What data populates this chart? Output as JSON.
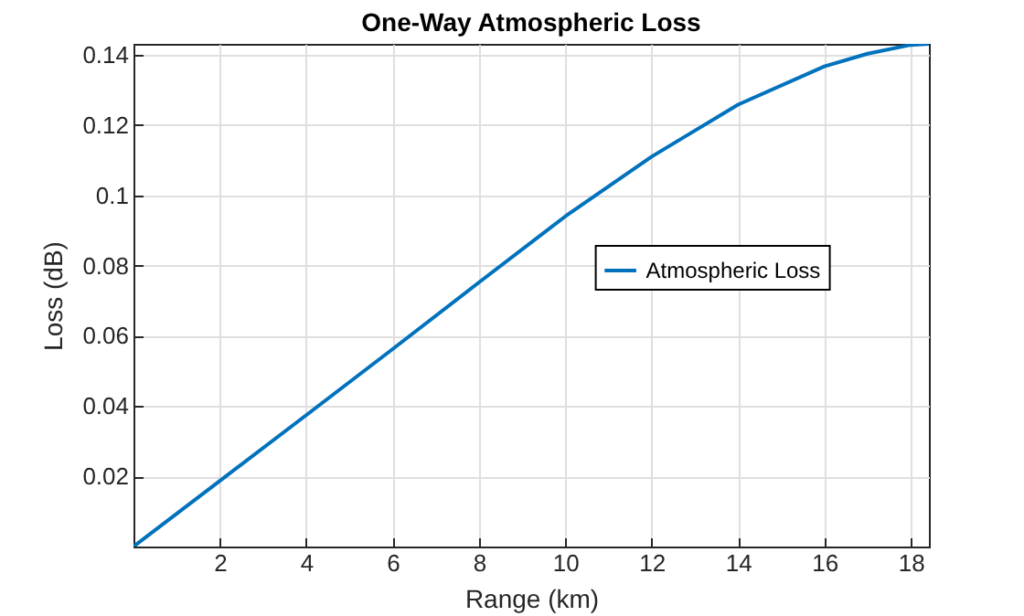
{
  "chart_data": {
    "type": "line",
    "title": "One-Way Atmospheric Loss",
    "xlabel": "Range (km)",
    "ylabel": "Loss (dB)",
    "x": [
      0,
      2,
      4,
      6,
      8,
      10,
      12,
      14,
      16,
      17,
      18,
      18.42
    ],
    "series": [
      {
        "name": "Atmospheric Loss",
        "color": "#0072bd",
        "values": [
          0,
          0.0187,
          0.0374,
          0.0562,
          0.0752,
          0.094,
          0.111,
          0.1258,
          0.1367,
          0.1403,
          0.1428,
          0.1431
        ]
      }
    ],
    "xlim": [
      0,
      18.42
    ],
    "ylim": [
      0,
      0.1431
    ],
    "xticks": [
      2,
      4,
      6,
      8,
      10,
      12,
      14,
      16,
      18
    ],
    "yticks": [
      0.02,
      0.04,
      0.06,
      0.08,
      0.1,
      0.12,
      0.14
    ],
    "grid": true,
    "legend": "right",
    "line_style": "solid"
  }
}
